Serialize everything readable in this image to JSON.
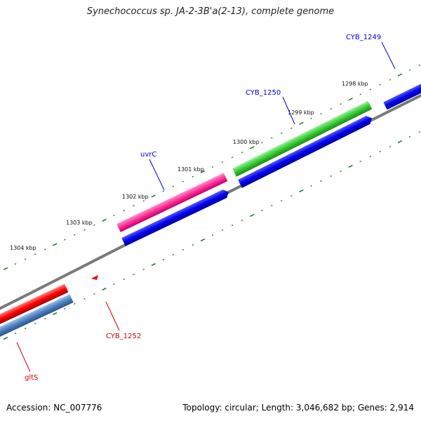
{
  "title": "Synechococcus sp. JA-2-3B'a(2-13), complete genome",
  "footer": {
    "accession": "Accession: NC_007776",
    "summary": "Topology: circular; Length: 3,046,682 bp; Genes: 2,914"
  },
  "colors": {
    "backbone": "#808080",
    "tick": "#2e7d32",
    "forward_cds": "#0000ee",
    "label_blue": "#0000cc",
    "label_red": "#cc0000",
    "uvrC": "#ff3399",
    "CYB_1250_gene": "#33cc33",
    "gltS_gene": "#ff0000",
    "gltS_cds": "#4a7fbf",
    "CYB_1252": "#ee0000"
  },
  "kbp_labels": [
    "1298 kbp",
    "1299 kbp",
    "1300 kbp",
    "1301 kbp",
    "1302 kbp",
    "1303 kbp",
    "1304 kbp"
  ],
  "gene_labels": {
    "cyb_1249": "CYB_1249",
    "cyb_1250": "CYB_1250",
    "uvrc": "uvrC",
    "cyb_1252": "CYB_1252",
    "glts": "gltS"
  }
}
